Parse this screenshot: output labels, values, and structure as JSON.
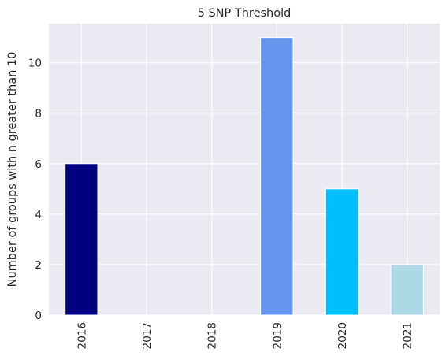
{
  "chart_data": {
    "type": "bar",
    "title": "5 SNP Threshold",
    "xlabel": "",
    "ylabel": "Number of groups with n greater than 10",
    "categories": [
      "2016",
      "2017",
      "2018",
      "2019",
      "2020",
      "2021"
    ],
    "values": [
      6,
      0,
      0,
      11,
      5,
      2
    ],
    "bar_colors": [
      "#000080",
      "#000080",
      "#000080",
      "#6495ED",
      "#00BFFF",
      "#ADD8E6"
    ],
    "ylim": [
      0,
      11.55
    ],
    "yticks": [
      "0",
      "2",
      "4",
      "6",
      "8",
      "10"
    ],
    "grid": true,
    "background_color": "#EAEAF2",
    "legend": null
  }
}
